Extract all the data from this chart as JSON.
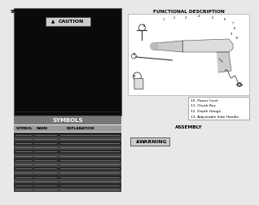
{
  "page_bg": "#e8e8e8",
  "left_dark_bg": "#0a0a0a",
  "caution_text": "CAUTION",
  "symbols_header_bg": "#777777",
  "symbols_header_text": "SYMBOLS",
  "table_header_bg": "#999999",
  "table_header_cols": [
    "SYMBOL",
    "NAME",
    "EXPLANATION"
  ],
  "table_rows": 14,
  "right_title": "FUNCTIONAL DESCRIPTION",
  "legend_items": [
    "10. Power Cord",
    "11. Chuck Key",
    "12. Depth Gauge",
    "13. Adjustable Side Handle"
  ],
  "assembly_text": "ASSEMBLY",
  "warning_text": "WARNING",
  "page_number_text": "5F",
  "row_dark_color": "#2a2a2a",
  "row_light_color": "#555555"
}
